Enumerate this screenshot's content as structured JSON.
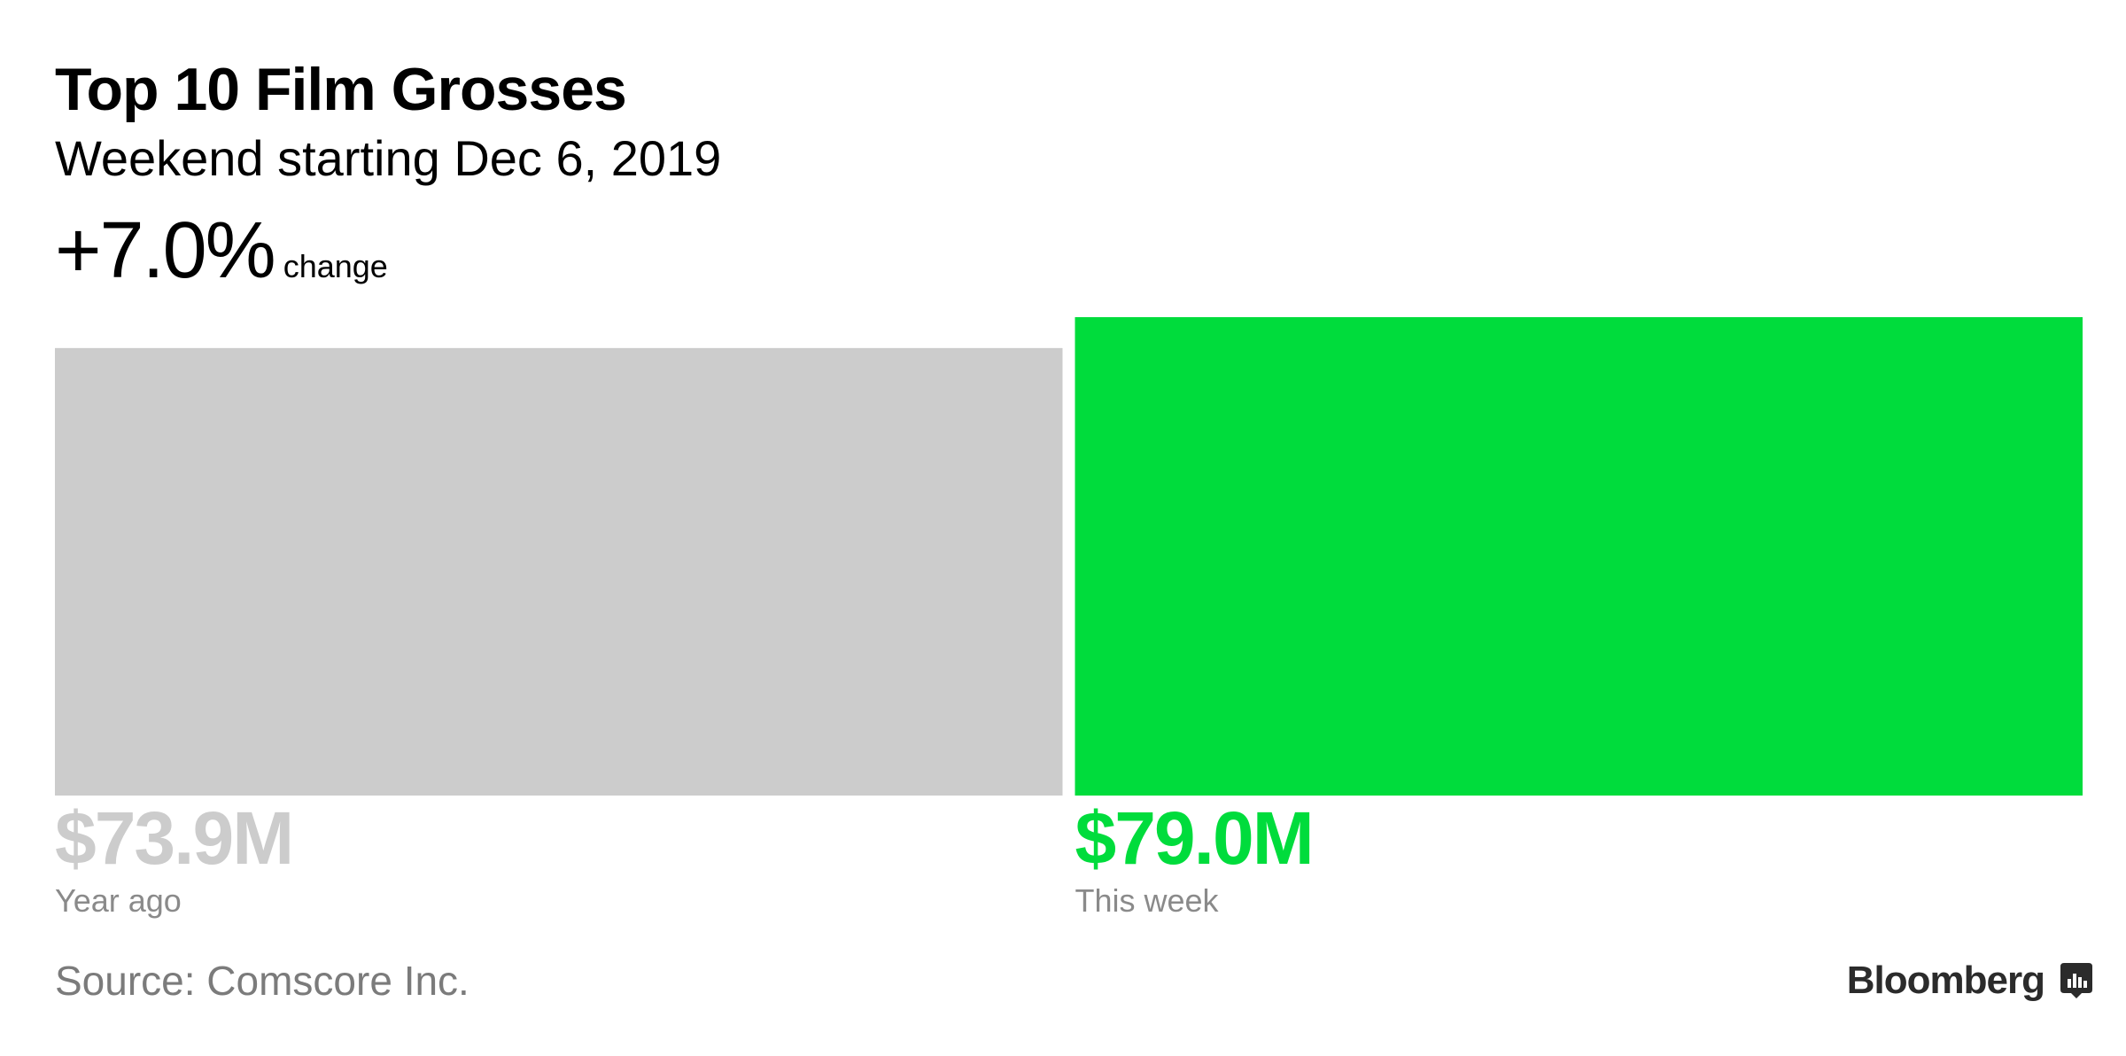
{
  "header": {
    "title": "Top 10 Film Grosses",
    "subtitle": "Weekend starting Dec 6, 2019",
    "change_value": "+7.0%",
    "change_label": "change"
  },
  "chart_data": {
    "type": "bar",
    "categories": [
      "Year ago",
      "This week"
    ],
    "values": [
      73.9,
      79.0
    ],
    "value_labels": [
      "$73.9M",
      "$79.0M"
    ],
    "unit": "$M",
    "colors": [
      "#cccccc",
      "#00dc3c"
    ],
    "title": "Top 10 Film Grosses",
    "subtitle": "Weekend starting Dec 6, 2019",
    "xlabel": "",
    "ylabel": "",
    "grid": false,
    "legend": "none"
  },
  "footer": {
    "source": "Source: Comscore Inc.",
    "brand": "Bloomberg",
    "brand_icon": "bloomberg-chart-icon"
  }
}
